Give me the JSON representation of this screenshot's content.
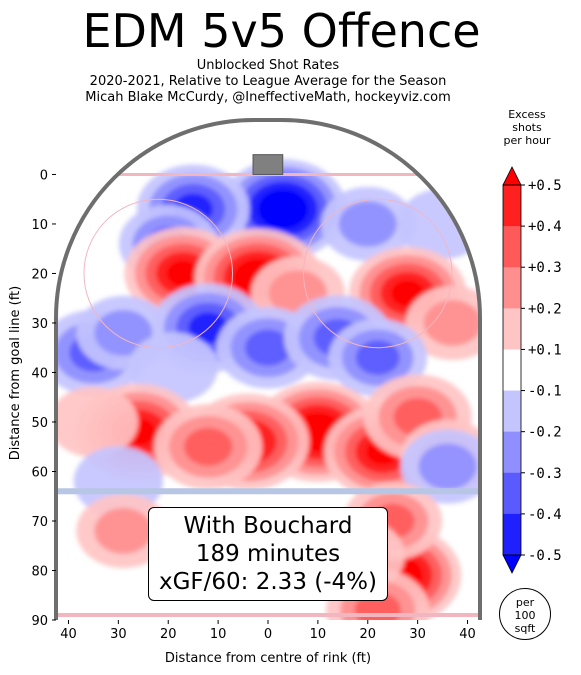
{
  "chart_data": {
    "type": "heatmap",
    "title": "EDM 5v5 Offence",
    "subtitle_lines": [
      "Unblocked Shot Rates",
      "2020-2021, Relative to League Average for the Season",
      "Micah Blake McCurdy, @IneffectiveMath, hockeyviz.com"
    ],
    "xlabel": "Distance from centre of rink (ft)",
    "ylabel": "Distance from goal line (ft)",
    "xlim": [
      -42.5,
      42.5
    ],
    "ylim": [
      90,
      -11
    ],
    "x_ticks": [
      -40,
      -30,
      -20,
      -10,
      0,
      10,
      20,
      30,
      40
    ],
    "x_tick_labels": [
      "40",
      "30",
      "20",
      "10",
      "0",
      "10",
      "20",
      "30",
      "40"
    ],
    "y_ticks": [
      0,
      10,
      20,
      30,
      40,
      50,
      60,
      70,
      80,
      90
    ],
    "y_tick_labels": [
      "0",
      "10",
      "20",
      "30",
      "40",
      "50",
      "60",
      "70",
      "80",
      "90"
    ],
    "colorbar": {
      "title_lines": [
        "Excess",
        "shots",
        "per hour"
      ],
      "levels": [
        -0.5,
        -0.4,
        -0.3,
        -0.2,
        -0.1,
        0.1,
        0.2,
        0.3,
        0.4,
        0.5
      ],
      "tick_labels": [
        "+0.5",
        "+0.4",
        "+0.3",
        "+0.2",
        "+0.1",
        "-0.1",
        "-0.2",
        "-0.3",
        "-0.4",
        "-0.5"
      ],
      "colors_top_to_bottom": [
        "#ff2020",
        "#ff5a5a",
        "#ff8f8f",
        "#ffc4c4",
        "#ffffff",
        "#c4c4ff",
        "#8f8fff",
        "#5a5aff",
        "#2020ff"
      ],
      "extend_top": "#ff0000",
      "extend_bottom": "#0000ff"
    },
    "hotspots": [
      {
        "x": 3,
        "y": 7,
        "value": -0.55
      },
      {
        "x": -15,
        "y": 7,
        "value": -0.4
      },
      {
        "x": 20,
        "y": 10,
        "value": -0.2
      },
      {
        "x": 35,
        "y": 10,
        "value": -0.15
      },
      {
        "x": -20,
        "y": 14,
        "value": -0.25
      },
      {
        "x": -17,
        "y": 20,
        "value": 0.45
      },
      {
        "x": -2,
        "y": 21,
        "value": 0.55
      },
      {
        "x": 6,
        "y": 24,
        "value": 0.2
      },
      {
        "x": 28,
        "y": 24,
        "value": 0.45
      },
      {
        "x": 37,
        "y": 30,
        "value": 0.2
      },
      {
        "x": -35,
        "y": 36,
        "value": -0.35
      },
      {
        "x": -29,
        "y": 32,
        "value": -0.2
      },
      {
        "x": -12,
        "y": 31,
        "value": -0.4
      },
      {
        "x": 0,
        "y": 35,
        "value": -0.3
      },
      {
        "x": 14,
        "y": 33,
        "value": -0.35
      },
      {
        "x": 22,
        "y": 37,
        "value": -0.25
      },
      {
        "x": -19,
        "y": 39,
        "value": -0.15
      },
      {
        "x": 10,
        "y": 52,
        "value": 0.55
      },
      {
        "x": -26,
        "y": 52,
        "value": 0.5
      },
      {
        "x": -4,
        "y": 54,
        "value": 0.5
      },
      {
        "x": 23,
        "y": 56,
        "value": 0.45
      },
      {
        "x": 30,
        "y": 49,
        "value": 0.35
      },
      {
        "x": -12,
        "y": 55,
        "value": 0.35
      },
      {
        "x": -35,
        "y": 50,
        "value": 0.15
      },
      {
        "x": 36,
        "y": 57,
        "value": 0.2
      },
      {
        "x": -30,
        "y": 62,
        "value": -0.15
      },
      {
        "x": 36,
        "y": 59,
        "value": -0.2
      },
      {
        "x": -29,
        "y": 72,
        "value": 0.2
      },
      {
        "x": 26,
        "y": 81,
        "value": 0.55
      },
      {
        "x": 25,
        "y": 70,
        "value": 0.25
      },
      {
        "x": 18,
        "y": 77,
        "value": 0.2
      },
      {
        "x": 22,
        "y": 88,
        "value": 0.3
      }
    ],
    "annotation_lines": [
      "With Bouchard",
      "189 minutes",
      "xGF/60: 2.33 (-4%)"
    ],
    "units_label_lines": [
      "per",
      "100",
      "sqft"
    ]
  }
}
